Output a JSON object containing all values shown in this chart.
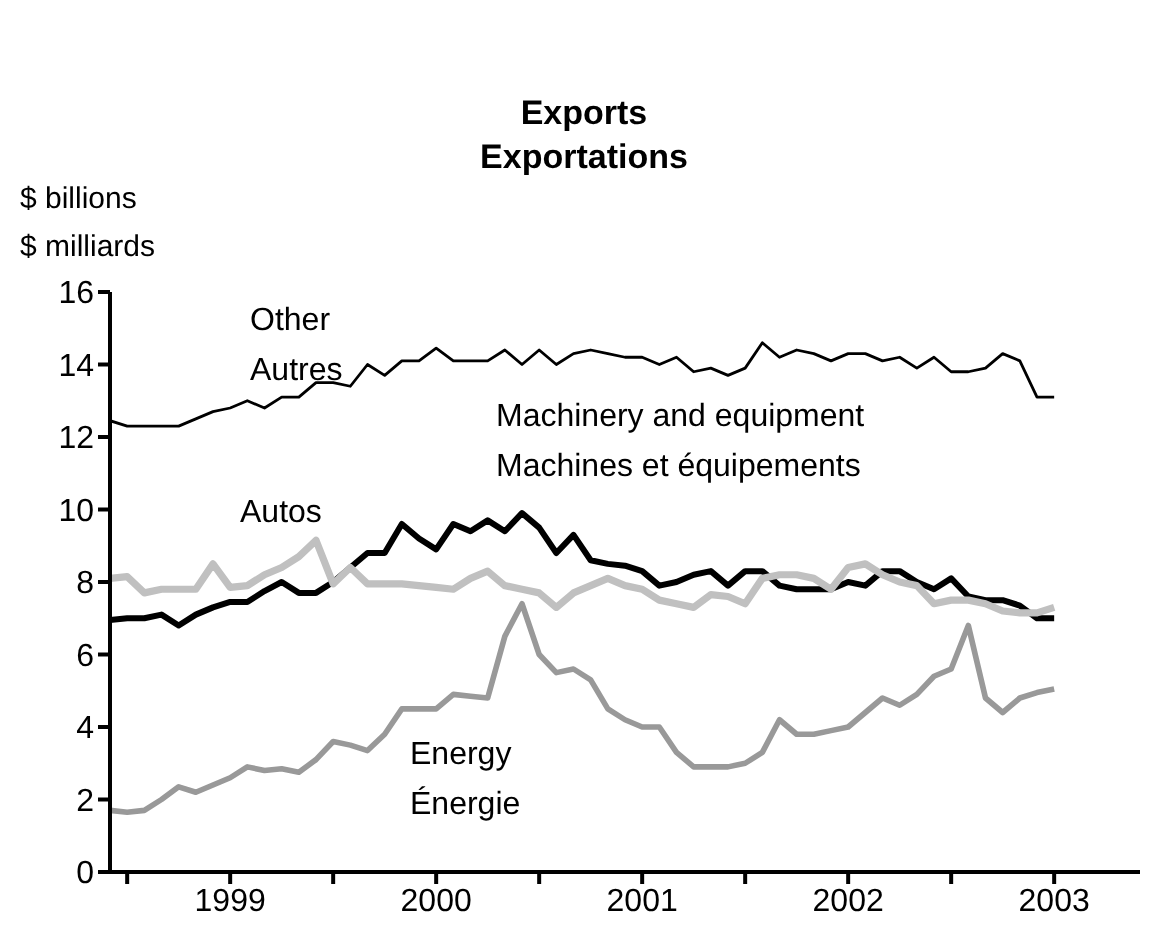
{
  "chart_data": {
    "type": "line",
    "title": "Exports\nExportations",
    "ylabel": "$ billions\n$ milliards",
    "x": [
      "1998-12",
      "1999-01",
      "1999-02",
      "1999-03",
      "1999-04",
      "1999-05",
      "1999-06",
      "1999-07",
      "1999-08",
      "1999-09",
      "1999-10",
      "1999-11",
      "1999-12",
      "2000-01",
      "2000-02",
      "2000-03",
      "2000-04",
      "2000-05",
      "2000-06",
      "2000-07",
      "2000-08",
      "2000-09",
      "2000-10",
      "2000-11",
      "2000-12",
      "2001-01",
      "2001-02",
      "2001-03",
      "2001-04",
      "2001-05",
      "2001-06",
      "2001-07",
      "2001-08",
      "2001-09",
      "2001-10",
      "2001-11",
      "2001-12",
      "2002-01",
      "2002-02",
      "2002-03",
      "2002-04",
      "2002-05",
      "2002-06",
      "2002-07",
      "2002-08",
      "2002-09",
      "2002-10",
      "2002-11",
      "2002-12",
      "2003-01",
      "2003-02",
      "2003-03",
      "2003-04",
      "2003-05",
      "2003-06",
      "2003-07"
    ],
    "series": [
      {
        "name": "Other\nAutres",
        "color": "#000000",
        "values": [
          12.45,
          12.3,
          12.3,
          12.3,
          12.3,
          12.5,
          12.7,
          12.8,
          13.0,
          12.8,
          13.1,
          13.1,
          13.5,
          13.5,
          13.4,
          14.0,
          13.7,
          14.1,
          14.1,
          14.45,
          14.1,
          14.1,
          14.1,
          14.4,
          14.0,
          14.4,
          14.0,
          14.3,
          14.4,
          14.3,
          14.2,
          14.2,
          14.0,
          14.2,
          13.8,
          13.9,
          13.7,
          13.9,
          14.6,
          14.2,
          14.4,
          14.3,
          14.1,
          14.3,
          14.3,
          14.1,
          14.2,
          13.9,
          14.2,
          13.8,
          13.8,
          13.9,
          14.3,
          14.1,
          13.1,
          13.1
        ]
      },
      {
        "name": "Machinery and equipment\nMachines et équipements",
        "color": "#000000",
        "values": [
          6.95,
          7.0,
          7.0,
          7.1,
          6.8,
          7.1,
          7.3,
          7.45,
          7.45,
          7.75,
          8.0,
          7.7,
          7.7,
          8.0,
          8.4,
          8.8,
          8.8,
          9.6,
          9.2,
          8.9,
          9.6,
          9.4,
          9.7,
          9.4,
          9.9,
          9.5,
          8.8,
          9.3,
          8.6,
          8.5,
          8.45,
          8.3,
          7.9,
          8.0,
          8.2,
          8.3,
          7.9,
          8.3,
          8.3,
          7.9,
          7.8,
          7.8,
          7.8,
          8.0,
          7.9,
          8.3,
          8.3,
          8.0,
          7.8,
          8.1,
          7.6,
          7.5,
          7.5,
          7.35,
          7.0,
          7.0
        ]
      },
      {
        "name": "Autos",
        "color": "#c0c0c0",
        "values": [
          8.1,
          8.15,
          7.7,
          7.8,
          7.8,
          7.8,
          8.5,
          7.85,
          7.9,
          8.2,
          8.4,
          8.7,
          9.15,
          7.95,
          8.4,
          7.95,
          7.95,
          7.95,
          7.9,
          7.85,
          7.8,
          8.1,
          8.3,
          7.9,
          7.8,
          7.7,
          7.3,
          7.7,
          7.9,
          8.1,
          7.9,
          7.8,
          7.5,
          7.4,
          7.3,
          7.65,
          7.6,
          7.4,
          8.1,
          8.2,
          8.2,
          8.1,
          7.8,
          8.4,
          8.5,
          8.2,
          8.0,
          7.9,
          7.4,
          7.5,
          7.5,
          7.4,
          7.2,
          7.15,
          7.15,
          7.3
        ]
      },
      {
        "name": "Energy\nÉnergie",
        "color": "#999999",
        "values": [
          1.7,
          1.65,
          1.7,
          2.0,
          2.35,
          2.2,
          2.4,
          2.6,
          2.9,
          2.8,
          2.85,
          2.75,
          3.1,
          3.6,
          3.5,
          3.35,
          3.8,
          4.5,
          4.5,
          4.5,
          4.9,
          4.85,
          4.8,
          6.5,
          7.4,
          6.0,
          5.5,
          5.6,
          5.3,
          4.5,
          4.2,
          4.0,
          4.0,
          3.3,
          2.9,
          2.9,
          2.9,
          3.0,
          3.3,
          4.2,
          3.8,
          3.8,
          3.9,
          4.0,
          4.4,
          4.8,
          4.6,
          4.9,
          5.4,
          5.6,
          6.8,
          4.8,
          4.4,
          4.8,
          4.95,
          5.05
        ]
      }
    ],
    "xlim": [
      "1998-12",
      "2003-12"
    ],
    "xticks": [
      {
        "value": "1999-01",
        "label": null
      },
      {
        "value": "1999-07",
        "label": "1999"
      },
      {
        "value": "2000-01",
        "label": null
      },
      {
        "value": "2000-07",
        "label": "2000"
      },
      {
        "value": "2001-01",
        "label": null
      },
      {
        "value": "2001-07",
        "label": "2001"
      },
      {
        "value": "2002-01",
        "label": null
      },
      {
        "value": "2002-07",
        "label": "2002"
      },
      {
        "value": "2003-01",
        "label": null
      },
      {
        "value": "2003-07",
        "label": "2003"
      }
    ],
    "ylim": [
      0,
      16
    ],
    "yticks": [
      0,
      2,
      4,
      6,
      8,
      10,
      12,
      14,
      16
    ],
    "grid": false,
    "legend": false,
    "marker": "none",
    "line_style": "solid"
  }
}
